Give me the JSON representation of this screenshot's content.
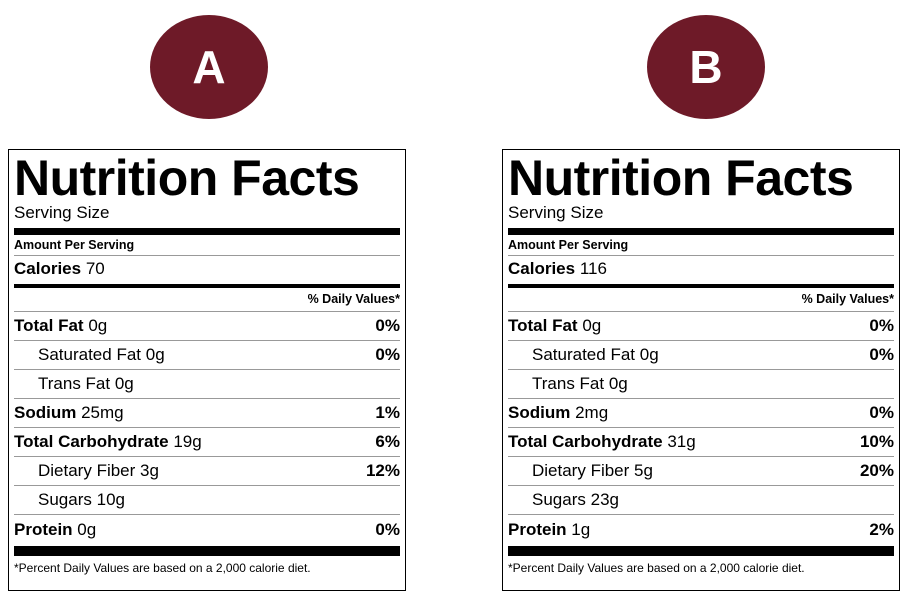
{
  "labels": [
    {
      "badge": "A",
      "title": "Nutrition Facts",
      "serving_size": "Serving Size",
      "amount_per_serving": "Amount Per Serving",
      "calories_label": "Calories",
      "calories_value": "70",
      "daily_values_header": "% Daily Values*",
      "nutrients": [
        {
          "name": "Total Fat",
          "amount": "0g",
          "percent": "0%"
        },
        {
          "name": "Saturated Fat",
          "amount": "0g",
          "percent": "0%"
        },
        {
          "name": "Trans Fat",
          "amount": "0g",
          "percent": ""
        },
        {
          "name": "Sodium",
          "amount": "25mg",
          "percent": "1%"
        },
        {
          "name": "Total Carbohydrate",
          "amount": "19g",
          "percent": "6%"
        },
        {
          "name": "Dietary Fiber",
          "amount": "3g",
          "percent": "12%"
        },
        {
          "name": "Sugars",
          "amount": "10g",
          "percent": ""
        },
        {
          "name": "Protein",
          "amount": "0g",
          "percent": "0%"
        }
      ],
      "footnote": "*Percent Daily Values are based on a 2,000 calorie diet."
    },
    {
      "badge": "B",
      "title": "Nutrition Facts",
      "serving_size": "Serving Size",
      "amount_per_serving": "Amount Per Serving",
      "calories_label": "Calories",
      "calories_value": "116",
      "daily_values_header": "% Daily Values*",
      "nutrients": [
        {
          "name": "Total Fat",
          "amount": "0g",
          "percent": "0%"
        },
        {
          "name": "Saturated Fat",
          "amount": "0g",
          "percent": "0%"
        },
        {
          "name": "Trans Fat",
          "amount": "0g",
          "percent": ""
        },
        {
          "name": "Sodium",
          "amount": "2mg",
          "percent": "0%"
        },
        {
          "name": "Total Carbohydrate",
          "amount": "31g",
          "percent": "10%"
        },
        {
          "name": "Dietary Fiber",
          "amount": "5g",
          "percent": "20%"
        },
        {
          "name": "Sugars",
          "amount": "23g",
          "percent": ""
        },
        {
          "name": "Protein",
          "amount": "1g",
          "percent": "2%"
        }
      ],
      "footnote": "*Percent Daily Values are based on a 2,000 calorie diet."
    }
  ]
}
